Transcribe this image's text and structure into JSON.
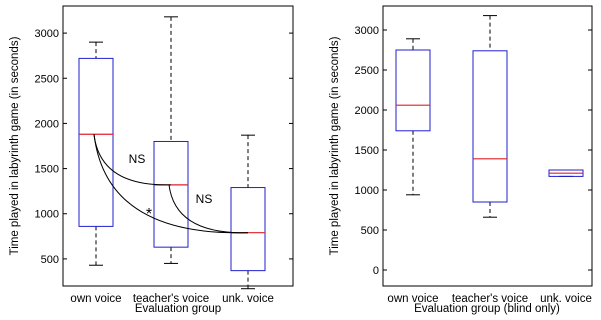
{
  "chart_data": [
    {
      "type": "box",
      "xlabel": "Evaluation group",
      "ylabel": "Time played in labyrinth game (in seconds)",
      "ylim": [
        200,
        3300
      ],
      "yticks": [
        500,
        1000,
        1500,
        2000,
        2500,
        3000
      ],
      "categories": [
        "own voice",
        "teacher's voice",
        "unk. voice"
      ],
      "boxes": [
        {
          "min": 430,
          "q1": 860,
          "median": 1880,
          "q3": 2720,
          "max": 2900
        },
        {
          "min": 450,
          "q1": 630,
          "median": 1320,
          "q3": 1800,
          "max": 3180
        },
        {
          "min": 170,
          "q1": 370,
          "median": 790,
          "q3": 1290,
          "max": 1870
        }
      ],
      "annotations": [
        {
          "from": 0,
          "to": 1,
          "label": "NS"
        },
        {
          "from": 1,
          "to": 2,
          "label": "NS"
        },
        {
          "from": 0,
          "to": 2,
          "label": "*"
        }
      ]
    },
    {
      "type": "box",
      "xlabel": "Evaluation group (blind only)",
      "ylabel": "Time played in labyrinth game (in seconds)",
      "ylim": [
        -200,
        3300
      ],
      "yticks": [
        0,
        500,
        1000,
        1500,
        2000,
        2500,
        3000
      ],
      "categories": [
        "own voice",
        "teacher's voice",
        "unk. voice"
      ],
      "boxes": [
        {
          "min": 940,
          "q1": 1740,
          "median": 2060,
          "q3": 2750,
          "max": 2890
        },
        {
          "min": 660,
          "q1": 850,
          "median": 1390,
          "q3": 2740,
          "max": 3180
        },
        {
          "min": 1170,
          "q1": 1170,
          "median": 1210,
          "q3": 1250,
          "max": 1250
        }
      ],
      "annotations": []
    }
  ]
}
